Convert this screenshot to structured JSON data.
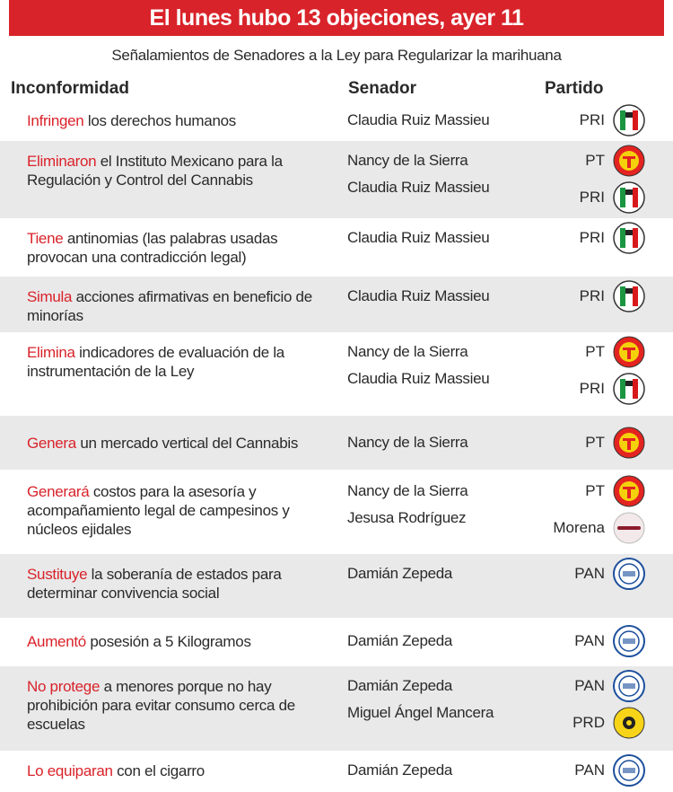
{
  "header": {
    "title": "El lunes hubo 13 objeciones, ayer 11",
    "subtitle": "Señalamientos de Senadores a la Ley para Regularizar la marihuana"
  },
  "table": {
    "columns": [
      "Inconformidad",
      "Senador",
      "Partido"
    ],
    "rows": [
      {
        "verb": "Infringen",
        "text": "los derechos humanos",
        "senators": [
          "Claudia Ruiz Massieu"
        ],
        "parties": [
          "PRI"
        ]
      },
      {
        "verb": "Eliminaron",
        "text": "el Instituto Mexicano para la Regulación y Control del Cannabis",
        "senators": [
          "Nancy de la Sierra",
          "Claudia Ruiz Massieu"
        ],
        "parties": [
          "PT",
          "PRI"
        ]
      },
      {
        "verb": "Tiene",
        "text": "antinomias (las palabras usadas provocan una contradicción legal)",
        "senators": [
          "Claudia Ruiz Massieu"
        ],
        "parties": [
          "PRI"
        ]
      },
      {
        "verb": "Simula",
        "text": "acciones afirmativas en beneficio de minorías",
        "senators": [
          "Claudia Ruiz Massieu"
        ],
        "parties": [
          "PRI"
        ]
      },
      {
        "verb": "Elimina",
        "text": "indicadores de evaluación de la instrumentación de la Ley",
        "senators": [
          "Nancy de la Sierra",
          "Claudia Ruiz Massieu"
        ],
        "parties": [
          "PT",
          "PRI"
        ]
      },
      {
        "verb": "Genera",
        "text": "un mercado vertical del Cannabis",
        "senators": [
          "Nancy de la Sierra"
        ],
        "parties": [
          "PT"
        ]
      },
      {
        "verb": "Generará",
        "text": "costos para la asesoría y acompañamiento legal de campesinos y núcleos ejidales",
        "senators": [
          "Nancy de la Sierra",
          "Jesusa Rodríguez"
        ],
        "parties": [
          "PT",
          "Morena"
        ]
      },
      {
        "verb": "Sustituye",
        "text": "la soberanía de estados para determinar convivencia social",
        "senators": [
          "Damián Zepeda"
        ],
        "parties": [
          "PAN"
        ]
      },
      {
        "verb": "Aumentó",
        "text": "posesión a 5 Kilogramos",
        "senators": [
          "Damián Zepeda"
        ],
        "parties": [
          "PAN"
        ]
      },
      {
        "verb": "No protege",
        "text": "a menores porque no hay prohibición para evitar consumo cerca de escuelas",
        "senators": [
          "Damián Zepeda",
          "Miguel Ángel Mancera"
        ],
        "parties": [
          "PAN",
          "PRD"
        ]
      },
      {
        "verb": "Lo equiparan",
        "text": "con el cigarro",
        "senators": [
          "Damián Zepeda"
        ],
        "parties": [
          "PAN"
        ]
      }
    ]
  }
}
